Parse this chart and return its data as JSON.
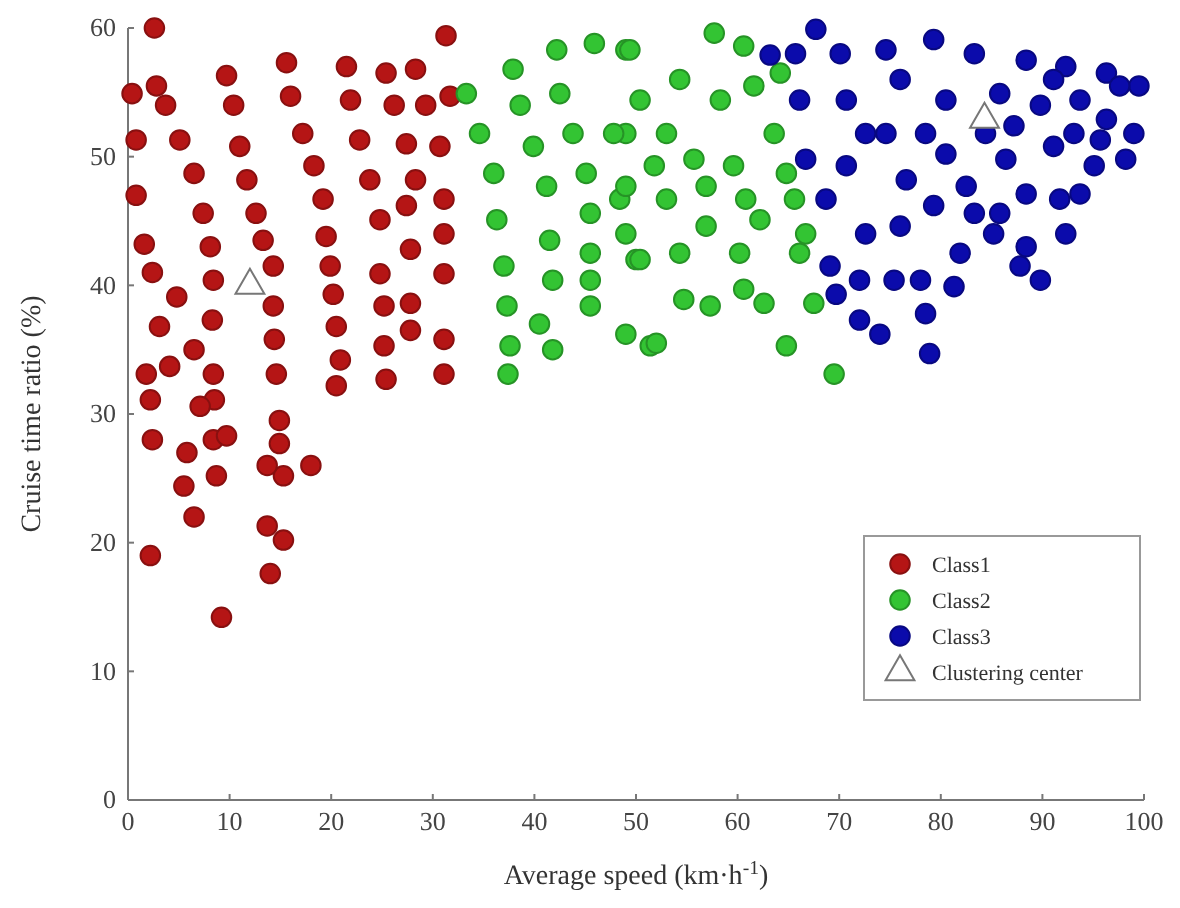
{
  "chart_data": {
    "type": "scatter",
    "xlabel": "Average speed (km·h$^{-1}$)",
    "ylabel": "Cruise time ratio (%)",
    "xlim": [
      0,
      100
    ],
    "ylim": [
      0,
      60
    ],
    "xticks": [
      0,
      10,
      20,
      30,
      40,
      50,
      60,
      70,
      80,
      90,
      100
    ],
    "yticks": [
      0,
      10,
      20,
      30,
      40,
      50,
      60
    ],
    "grid": false,
    "legend": "bottom right",
    "marker": "circle",
    "series": [
      {
        "name": "Class1",
        "color": "#b51515",
        "x": [
          2.6,
          0.4,
          0.8,
          0.8,
          1.6,
          2.4,
          1.8,
          2.2,
          2.4,
          2.2,
          2.8,
          3.7,
          5.1,
          6.5,
          7.4,
          8.1,
          8.4,
          8.3,
          8.4,
          8.5,
          8.4,
          9.2,
          5.8,
          5.5,
          6.5,
          7.1,
          4.1,
          3.1,
          4.8,
          6.5,
          8.7,
          9.7,
          9.7,
          10.4,
          11,
          11.7,
          12.6,
          13.3,
          14.3,
          14.3,
          14.4,
          14.6,
          14.9,
          14.9,
          15.3,
          13.7,
          18,
          13.7,
          15.3,
          14,
          15.6,
          16,
          17.2,
          18.3,
          19.2,
          21.5,
          21.9,
          22.8,
          23.8,
          19.5,
          19.9,
          20.2,
          20.5,
          20.9,
          20.5,
          25.4,
          26.2,
          27.4,
          28.3,
          24.8,
          24.8,
          25.2,
          25.2,
          25.4,
          27.4,
          27.8,
          27.8,
          27.8,
          28.3,
          29.3,
          30.7,
          31.3,
          31.1,
          31.1,
          31.1,
          31.1,
          31.1,
          31.7
        ],
        "values": [
          60,
          54.9,
          51.3,
          47,
          43.2,
          41,
          33.1,
          31.1,
          28,
          19,
          55.5,
          54,
          51.3,
          48.7,
          45.6,
          43,
          40.4,
          37.3,
          33.1,
          31.1,
          28,
          14.2,
          27,
          24.4,
          22,
          30.6,
          33.7,
          36.8,
          39.1,
          35,
          25.2,
          28.3,
          56.3,
          54,
          50.8,
          48.2,
          45.6,
          43.5,
          41.5,
          38.4,
          35.8,
          33.1,
          29.5,
          27.7,
          25.2,
          26,
          26,
          21.3,
          20.2,
          17.6,
          57.3,
          54.7,
          51.8,
          49.3,
          46.7,
          57,
          54.4,
          51.3,
          48.2,
          43.8,
          41.5,
          39.3,
          36.8,
          34.2,
          32.2,
          56.5,
          54,
          51,
          48.2,
          45.1,
          40.9,
          38.4,
          35.3,
          32.7,
          46.2,
          42.8,
          38.6,
          36.5,
          56.8,
          54,
          50.8,
          59.4,
          46.7,
          44,
          40.9,
          35.8,
          33.1,
          54.7
        ]
      },
      {
        "name": "Class2",
        "color": "#33c433",
        "x": [
          33.3,
          34.6,
          36,
          36.3,
          37,
          37.3,
          37.6,
          37.4,
          40.5,
          41.8,
          37.9,
          38.6,
          39.9,
          41.2,
          41.5,
          41.8,
          42.2,
          42.5,
          43.8,
          45.1,
          45.5,
          45.5,
          45.5,
          45.5,
          45.9,
          49,
          49,
          51.4,
          50,
          49,
          48.4,
          49,
          57.7,
          49.4,
          60.6,
          50.4,
          54.7,
          57.3,
          60.6,
          62.6,
          67.5,
          52,
          64.8,
          69.5,
          54.3,
          60.2,
          66.1,
          53,
          56.9,
          62.2,
          66.7,
          47.8,
          50.4,
          53,
          54.3,
          55.7,
          58.3,
          59.6,
          61.6,
          63.6,
          64.8,
          64.2,
          49,
          51.8,
          56.9,
          60.8,
          65.6
        ],
        "values": [
          54.9,
          51.8,
          48.7,
          45.1,
          41.5,
          38.4,
          35.3,
          33.1,
          37,
          35,
          56.8,
          54,
          50.8,
          47.7,
          43.5,
          40.4,
          58.3,
          54.9,
          51.8,
          48.7,
          45.6,
          42.5,
          40.4,
          38.4,
          58.8,
          58.3,
          36.2,
          35.3,
          42,
          44,
          46.7,
          51.8,
          59.6,
          58.3,
          58.6,
          42,
          38.9,
          38.4,
          39.7,
          38.6,
          38.6,
          35.5,
          35.3,
          33.1,
          42.5,
          42.5,
          42.5,
          46.7,
          44.6,
          45.1,
          44,
          51.8,
          54.4,
          51.8,
          56,
          49.8,
          54.4,
          49.3,
          55.5,
          51.8,
          48.7,
          56.5,
          47.7,
          49.3,
          47.7,
          46.7,
          46.7
        ]
      },
      {
        "name": "Class3",
        "color": "#0b0bab",
        "x": [
          67.7,
          63.2,
          65.7,
          70.1,
          74.6,
          79.3,
          83.3,
          88.4,
          92.3,
          96.3,
          99.5,
          99,
          98.2,
          92.3,
          91.7,
          88.4,
          89.8,
          87.8,
          85.2,
          81.9,
          81.3,
          78.5,
          78.9,
          78,
          75.4,
          72,
          69.7,
          69.1,
          72,
          74,
          72.6,
          76,
          79.3,
          83.3,
          68.7,
          66.7,
          66.1,
          70.7,
          70.7,
          74.6,
          76,
          76.6,
          80.5,
          80.5,
          82.5,
          85.8,
          86.4,
          88.4,
          89.8,
          91.1,
          93.7,
          95.1,
          96.3,
          97.6,
          93.7,
          85.8,
          87.2,
          93.1,
          95.7,
          91.1,
          84.4,
          78.5,
          72.6
        ],
        "values": [
          59.9,
          57.9,
          58,
          58,
          58.3,
          59.1,
          58,
          57.5,
          57,
          56.5,
          55.5,
          51.8,
          49.8,
          44,
          46.7,
          43,
          40.4,
          41.5,
          44,
          42.5,
          39.9,
          37.8,
          34.7,
          40.4,
          40.4,
          40.4,
          39.3,
          41.5,
          37.3,
          36.2,
          44,
          44.6,
          46.2,
          45.6,
          46.7,
          49.8,
          54.4,
          54.4,
          49.3,
          51.8,
          56,
          48.2,
          54.4,
          50.2,
          47.7,
          54.9,
          49.8,
          47.1,
          54,
          50.8,
          54.4,
          49.3,
          52.9,
          55.5,
          47.1,
          45.6,
          52.4,
          51.8,
          51.3,
          56,
          51.8,
          51.8,
          51.8
        ]
      },
      {
        "name": "Clustering center",
        "color": "#ffffff",
        "marker": "triangle",
        "x": [
          12,
          84.3
        ],
        "values": [
          40,
          52.9
        ]
      }
    ]
  }
}
